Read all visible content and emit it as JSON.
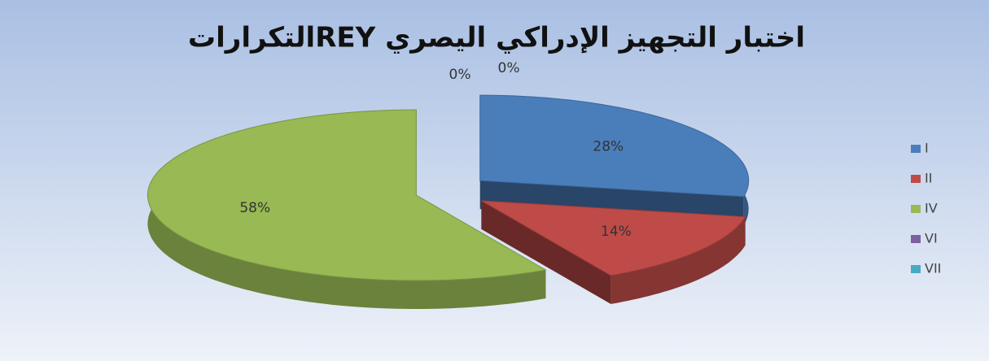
{
  "chart_data": {
    "type": "pie3d",
    "title": "اختبار التجهيز الإدراكي اليصري  REYالتكرارات",
    "categories": [
      "I",
      "II",
      "IV",
      "VI",
      "VII"
    ],
    "values": [
      28,
      14,
      58,
      0,
      0
    ],
    "value_labels": [
      "28%",
      "14%",
      "58%",
      "0%",
      "0%"
    ],
    "colors": [
      "#4a7ebb",
      "#be4b48",
      "#98b954",
      "#7d60a0",
      "#46aac5"
    ],
    "legend": "right"
  }
}
